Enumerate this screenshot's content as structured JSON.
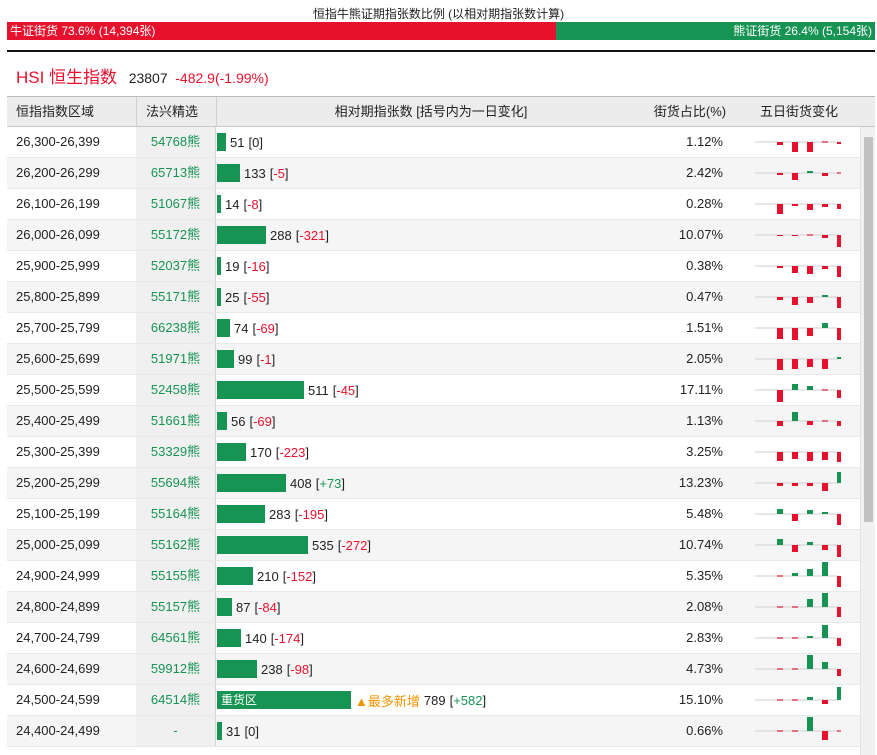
{
  "top": {
    "title": "恒指牛熊证期指张数比例 (以相对期指张数计算)",
    "bull_label": "牛证街货 73.6% (14,394张)",
    "bear_label": "熊证街货 26.4% (5,154张)",
    "bull_fraction": 0.736
  },
  "index": {
    "name": "HSI 恒生指数",
    "value": "23807",
    "change": "-482.9(-1.99%)"
  },
  "headers": {
    "range": "恒指指数区域",
    "code": "法兴精选",
    "count": "相对期指张数 [括号内为一日变化]",
    "share": "街货占比(%)",
    "trend": "五日街货变化"
  },
  "rows": [
    {
      "range": "26,300-26,399",
      "code": "54768熊",
      "count": "51",
      "change": "0",
      "share": "1.12%",
      "trend": [
        -3,
        -10,
        -10,
        0,
        -2
      ]
    },
    {
      "range": "26,200-26,299",
      "code": "65713熊",
      "count": "133",
      "change": "-5",
      "share": "2.42%",
      "trend": [
        -2,
        -7,
        2,
        -3,
        0
      ]
    },
    {
      "range": "26,100-26,199",
      "code": "51067熊",
      "count": "14",
      "change": "-8",
      "share": "0.28%",
      "trend": [
        -10,
        -2,
        -6,
        -3,
        -5
      ]
    },
    {
      "range": "26,000-26,099",
      "code": "55172熊",
      "count": "288",
      "change": "-321",
      "share": "10.07%",
      "trend": [
        -1,
        -1,
        0,
        -3,
        -12
      ]
    },
    {
      "range": "25,900-25,999",
      "code": "52037熊",
      "count": "19",
      "change": "-16",
      "share": "0.38%",
      "trend": [
        -2,
        -7,
        -8,
        -3,
        -11
      ]
    },
    {
      "range": "25,800-25,899",
      "code": "55171熊",
      "count": "25",
      "change": "-55",
      "share": "0.47%",
      "trend": [
        -3,
        -8,
        -6,
        2,
        -11
      ]
    },
    {
      "range": "25,700-25,799",
      "code": "66238熊",
      "count": "74",
      "change": "-69",
      "share": "1.51%",
      "trend": [
        -11,
        -12,
        -8,
        5,
        -12
      ]
    },
    {
      "range": "25,600-25,699",
      "code": "51971熊",
      "count": "99",
      "change": "-1",
      "share": "2.05%",
      "trend": [
        -11,
        -10,
        -8,
        -10,
        2
      ]
    },
    {
      "range": "25,500-25,599",
      "code": "52458熊",
      "count": "511",
      "change": "-45",
      "share": "17.11%",
      "trend": [
        -12,
        6,
        4,
        0,
        -8
      ]
    },
    {
      "range": "25,400-25,499",
      "code": "51661熊",
      "count": "56",
      "change": "-69",
      "share": "1.13%",
      "trend": [
        -5,
        9,
        -4,
        0,
        -5
      ]
    },
    {
      "range": "25,300-25,399",
      "code": "53329熊",
      "count": "170",
      "change": "-223",
      "share": "3.25%",
      "trend": [
        -9,
        -7,
        -9,
        -8,
        -10
      ]
    },
    {
      "range": "25,200-25,299",
      "code": "55694熊",
      "count": "408",
      "change": "+73",
      "share": "13.23%",
      "trend": [
        -3,
        -3,
        -3,
        -8,
        11
      ]
    },
    {
      "range": "25,100-25,199",
      "code": "55164熊",
      "count": "283",
      "change": "-195",
      "share": "5.48%",
      "trend": [
        5,
        -7,
        4,
        2,
        -11
      ]
    },
    {
      "range": "25,000-25,099",
      "code": "55162熊",
      "count": "535",
      "change": "-272",
      "share": "10.74%",
      "trend": [
        6,
        -7,
        3,
        -5,
        -12
      ]
    },
    {
      "range": "24,900-24,999",
      "code": "55155熊",
      "count": "210",
      "change": "-152",
      "share": "5.35%",
      "trend": [
        0,
        3,
        7,
        14,
        -11
      ]
    },
    {
      "range": "24,800-24,899",
      "code": "55157熊",
      "count": "87",
      "change": "-84",
      "share": "2.08%",
      "trend": [
        0,
        0,
        8,
        14,
        -10
      ]
    },
    {
      "range": "24,700-24,799",
      "code": "64561熊",
      "count": "140",
      "change": "-174",
      "share": "2.83%",
      "trend": [
        0,
        0,
        2,
        13,
        -8
      ]
    },
    {
      "range": "24,600-24,699",
      "code": "59912熊",
      "count": "238",
      "change": "-98",
      "share": "4.73%",
      "trend": [
        0,
        0,
        14,
        7,
        -7
      ]
    },
    {
      "range": "24,500-24,599",
      "code": "64514熊",
      "count": "789",
      "change": "+582",
      "share": "15.10%",
      "trend": [
        0,
        0,
        3,
        -4,
        13
      ],
      "bar_label": "重货区",
      "tag": "▲最多新增"
    },
    {
      "range": "24,400-24,499",
      "code": "-",
      "count": "31",
      "change": "0",
      "share": "0.66%",
      "trend": [
        0,
        0,
        14,
        -9,
        0
      ]
    }
  ],
  "colors": {
    "red": "#e8112d",
    "green": "#179453",
    "orange": "#f29400"
  }
}
